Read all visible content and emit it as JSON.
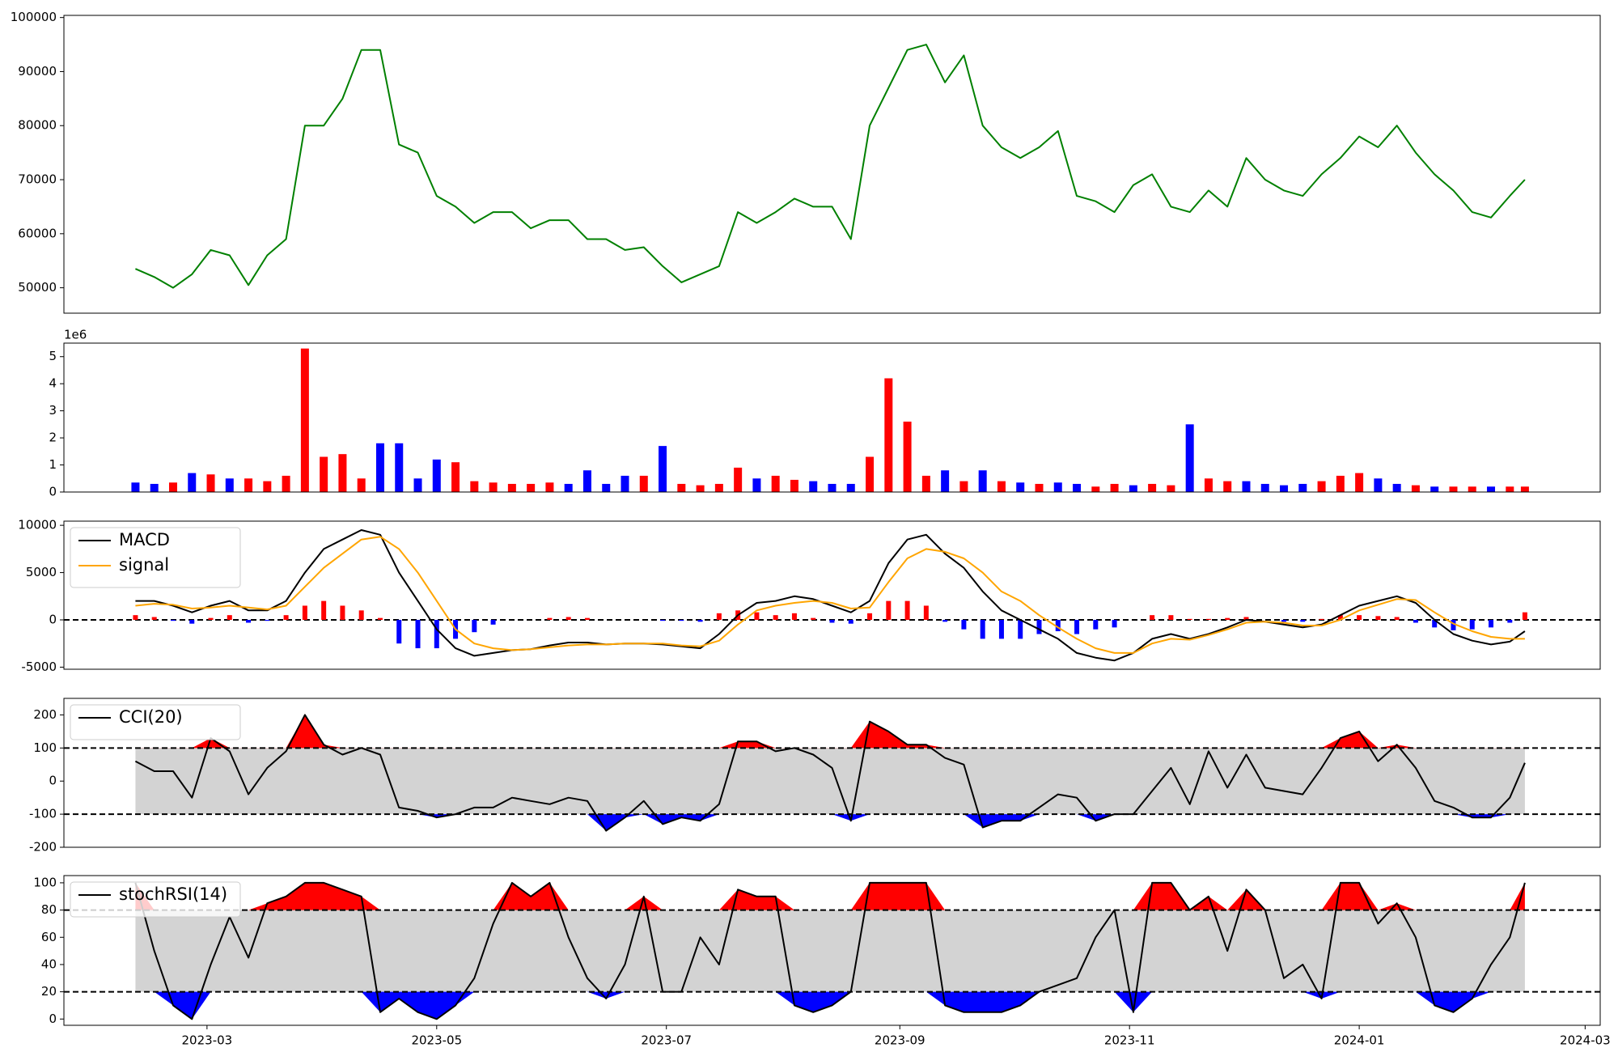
{
  "chart_data": [
    {
      "type": "line",
      "x": [
        "2023-02-10",
        "2023-02-15",
        "2023-02-20",
        "2023-02-25",
        "2023-03-02",
        "2023-03-07",
        "2023-03-12",
        "2023-03-17",
        "2023-03-22",
        "2023-03-27",
        "2023-04-01",
        "2023-04-06",
        "2023-04-11",
        "2023-04-16",
        "2023-04-21",
        "2023-04-26",
        "2023-05-01",
        "2023-05-06",
        "2023-05-11",
        "2023-05-16",
        "2023-05-21",
        "2023-05-26",
        "2023-05-31",
        "2023-06-05",
        "2023-06-10",
        "2023-06-15",
        "2023-06-20",
        "2023-06-25",
        "2023-06-30",
        "2023-07-05",
        "2023-07-10",
        "2023-07-15",
        "2023-07-20",
        "2023-07-25",
        "2023-07-30",
        "2023-08-04",
        "2023-08-09",
        "2023-08-14",
        "2023-08-19",
        "2023-08-24",
        "2023-08-29",
        "2023-09-03",
        "2023-09-08",
        "2023-09-13",
        "2023-09-18",
        "2023-09-23",
        "2023-09-28",
        "2023-10-03",
        "2023-10-08",
        "2023-10-13",
        "2023-10-18",
        "2023-10-23",
        "2023-10-28",
        "2023-11-02",
        "2023-11-07",
        "2023-11-12",
        "2023-11-17",
        "2023-11-22",
        "2023-11-27",
        "2023-12-02",
        "2023-12-07",
        "2023-12-12",
        "2023-12-17",
        "2023-12-22",
        "2023-12-27",
        "2024-01-01",
        "2024-01-06",
        "2024-01-11",
        "2024-01-16",
        "2024-01-21",
        "2024-01-26",
        "2024-01-31",
        "2024-02-05",
        "2024-02-10",
        "2024-02-14"
      ],
      "xlim": [
        "2023-01-22",
        "2024-03-05"
      ],
      "ylim": [
        45300,
        100400
      ],
      "yticks": [
        50000,
        60000,
        70000,
        80000,
        90000,
        100000
      ],
      "series": [
        {
          "color": "#008000",
          "values": [
            53500,
            52000,
            50000,
            52500,
            57000,
            56000,
            50500,
            56000,
            59000,
            80000,
            80000,
            85000,
            94000,
            94000,
            76500,
            75000,
            67000,
            65000,
            62000,
            64000,
            64000,
            61000,
            62500,
            62500,
            59000,
            59000,
            57000,
            57500,
            54000,
            51000,
            52500,
            54000,
            64000,
            62000,
            64000,
            66500,
            65000,
            65000,
            59000,
            80000,
            87000,
            94000,
            95000,
            88000,
            93000,
            80000,
            76000,
            74000,
            76000,
            79000,
            67000,
            66000,
            64000,
            69000,
            71000,
            65000,
            64000,
            68000,
            65000,
            74000,
            70000,
            68000,
            67000,
            71000,
            74000,
            78000,
            76000,
            80000,
            75000,
            71000,
            68000,
            64000,
            63000,
            67000,
            70000
          ]
        }
      ]
    },
    {
      "type": "bar",
      "offset_label": "1e6",
      "ylim": [
        0,
        5.5
      ],
      "yticks": [
        0,
        1,
        2,
        3,
        4,
        5
      ],
      "values": [
        0.35,
        0.3,
        0.35,
        0.7,
        0.65,
        0.5,
        0.5,
        0.4,
        0.6,
        5.3,
        1.3,
        1.4,
        0.5,
        1.8,
        1.8,
        0.5,
        1.2,
        1.1,
        0.4,
        0.35,
        0.3,
        0.3,
        0.35,
        0.3,
        0.8,
        0.3,
        0.6,
        0.6,
        1.7,
        0.3,
        0.25,
        0.3,
        0.9,
        0.5,
        0.6,
        0.45,
        0.4,
        0.3,
        0.3,
        1.3,
        4.2,
        2.6,
        0.6,
        0.8,
        0.4,
        0.8,
        0.4,
        0.35,
        0.3,
        0.35,
        0.3,
        0.2,
        0.3,
        0.25,
        0.3,
        0.25,
        2.5,
        0.5,
        0.4,
        0.4,
        0.3,
        0.25,
        0.3,
        0.4,
        0.6,
        0.7,
        0.5,
        0.3,
        0.25,
        0.2,
        0.2,
        0.2,
        0.2,
        0.2,
        0.2
      ],
      "colors": [
        "blue",
        "blue",
        "red",
        "blue",
        "red",
        "blue",
        "red",
        "red",
        "red",
        "red",
        "red",
        "red",
        "red",
        "blue",
        "blue",
        "blue",
        "blue",
        "red",
        "red",
        "red",
        "red",
        "red",
        "red",
        "blue",
        "blue",
        "blue",
        "blue",
        "red",
        "blue",
        "red",
        "red",
        "red",
        "red",
        "blue",
        "red",
        "red",
        "blue",
        "blue",
        "blue",
        "red",
        "red",
        "red",
        "red",
        "blue",
        "red",
        "blue",
        "red",
        "blue",
        "red",
        "blue",
        "blue",
        "red",
        "red",
        "blue",
        "red",
        "red",
        "blue",
        "red",
        "red",
        "blue",
        "blue",
        "blue",
        "blue",
        "red",
        "red",
        "red",
        "blue",
        "blue",
        "red",
        "blue",
        "red",
        "red",
        "blue",
        "red",
        "red"
      ]
    },
    {
      "type": "macd",
      "legend": "upper left",
      "ylim": [
        -5220,
        10440
      ],
      "yticks": [
        -5000,
        0,
        5000,
        10000
      ],
      "reference_lines": [
        0
      ],
      "series": [
        {
          "name": "MACD",
          "color": "#000000",
          "values": [
            2000,
            2000,
            1500,
            800,
            1500,
            2000,
            1000,
            1000,
            2000,
            5000,
            7500,
            8500,
            9500,
            9000,
            5000,
            2000,
            -1000,
            -3000,
            -3800,
            -3500,
            -3200,
            -3100,
            -2700,
            -2400,
            -2400,
            -2600,
            -2500,
            -2500,
            -2600,
            -2800,
            -3000,
            -1500,
            500,
            1800,
            2000,
            2500,
            2200,
            1500,
            800,
            2000,
            6000,
            8500,
            9000,
            7000,
            5500,
            3000,
            1000,
            0,
            -1000,
            -2000,
            -3500,
            -4000,
            -4300,
            -3500,
            -2000,
            -1500,
            -2000,
            -1500,
            -800,
            0,
            -200,
            -500,
            -800,
            -500,
            500,
            1500,
            2000,
            2500,
            1800,
            0,
            -1500,
            -2200,
            -2600,
            -2300,
            -1200
          ]
        },
        {
          "name": "signal",
          "color": "#ffa500",
          "values": [
            1500,
            1700,
            1600,
            1200,
            1300,
            1500,
            1300,
            1100,
            1500,
            3500,
            5500,
            7000,
            8500,
            8800,
            7500,
            5000,
            2000,
            -1000,
            -2500,
            -3000,
            -3200,
            -3100,
            -2900,
            -2700,
            -2600,
            -2600,
            -2500,
            -2500,
            -2500,
            -2700,
            -2800,
            -2200,
            -500,
            1000,
            1500,
            1800,
            2000,
            1800,
            1200,
            1300,
            4000,
            6500,
            7500,
            7200,
            6500,
            5000,
            3000,
            2000,
            500,
            -800,
            -2000,
            -3000,
            -3500,
            -3500,
            -2500,
            -2000,
            -2100,
            -1600,
            -1000,
            -300,
            -200,
            -300,
            -600,
            -600,
            0,
            1000,
            1600,
            2200,
            2100,
            800,
            -400,
            -1200,
            -1800,
            -2000,
            -2000
          ]
        }
      ],
      "histogram": {
        "pos_color": "red",
        "neg_color": "blue",
        "values": [
          500,
          300,
          -100,
          -400,
          200,
          500,
          -300,
          -100,
          500,
          1500,
          2000,
          1500,
          1000,
          200,
          -2500,
          -3000,
          -3000,
          -2000,
          -1300,
          -500,
          0,
          0,
          200,
          300,
          200,
          0,
          0,
          0,
          -100,
          -100,
          -200,
          700,
          1000,
          800,
          500,
          700,
          200,
          -300,
          -400,
          700,
          2000,
          2000,
          1500,
          -200,
          -1000,
          -2000,
          -2000,
          -2000,
          -1500,
          -1200,
          -1500,
          -1000,
          -800,
          0,
          500,
          500,
          100,
          100,
          200,
          300,
          0,
          -200,
          -200,
          100,
          500,
          500,
          400,
          300,
          -300,
          -800,
          -1100,
          -1000,
          -800,
          -300,
          800
        ]
      }
    },
    {
      "type": "oscillator",
      "legend": "upper left",
      "ylim": [
        -200,
        250
      ],
      "yticks": [
        -200,
        -100,
        0,
        100,
        200
      ],
      "thresholds": [
        100,
        -100
      ],
      "band_color": "#d3d3d3",
      "high_color": "red",
      "low_color": "blue",
      "series": [
        {
          "name": "CCI(20)",
          "color": "#000000",
          "values": [
            60,
            30,
            30,
            -50,
            130,
            90,
            -40,
            40,
            90,
            200,
            110,
            80,
            100,
            80,
            -80,
            -90,
            -110,
            -100,
            -80,
            -80,
            -50,
            -60,
            -70,
            -50,
            -60,
            -150,
            -110,
            -60,
            -130,
            -110,
            -120,
            -70,
            120,
            120,
            90,
            100,
            80,
            40,
            -120,
            180,
            150,
            110,
            110,
            70,
            50,
            -140,
            -120,
            -120,
            -80,
            -40,
            -50,
            -120,
            -100,
            -100,
            -30,
            40,
            -70,
            90,
            -20,
            80,
            -20,
            -30,
            -40,
            40,
            130,
            150,
            60,
            110,
            40,
            -60,
            -80,
            -110,
            -110,
            -50,
            55
          ]
        }
      ]
    },
    {
      "type": "oscillator",
      "legend": "upper left",
      "ylim": [
        -4.6,
        105.3
      ],
      "yticks": [
        0,
        20,
        40,
        60,
        80,
        100
      ],
      "thresholds": [
        80,
        20
      ],
      "band_color": "#d3d3d3",
      "high_color": "red",
      "low_color": "blue",
      "xticks": [
        {
          "value": "2023-03-01",
          "label": "2023-03"
        },
        {
          "value": "2023-05-01",
          "label": "2023-05"
        },
        {
          "value": "2023-07-01",
          "label": "2023-07"
        },
        {
          "value": "2023-09-01",
          "label": "2023-09"
        },
        {
          "value": "2023-11-01",
          "label": "2023-11"
        },
        {
          "value": "2024-01-01",
          "label": "2024-01"
        },
        {
          "value": "2024-03-01",
          "label": "2024-03"
        }
      ],
      "series": [
        {
          "name": "stochRSI(14)",
          "color": "#000000",
          "values": [
            100,
            50,
            10,
            0,
            40,
            75,
            45,
            85,
            90,
            100,
            100,
            95,
            90,
            5,
            15,
            5,
            0,
            10,
            30,
            70,
            100,
            90,
            100,
            60,
            30,
            15,
            40,
            90,
            20,
            20,
            60,
            40,
            95,
            90,
            90,
            10,
            5,
            10,
            20,
            100,
            100,
            100,
            100,
            10,
            5,
            5,
            5,
            10,
            20,
            25,
            30,
            60,
            80,
            5,
            100,
            100,
            80,
            90,
            50,
            95,
            80,
            30,
            40,
            15,
            100,
            100,
            70,
            85,
            60,
            10,
            5,
            15,
            40,
            60,
            100
          ]
        }
      ]
    }
  ]
}
